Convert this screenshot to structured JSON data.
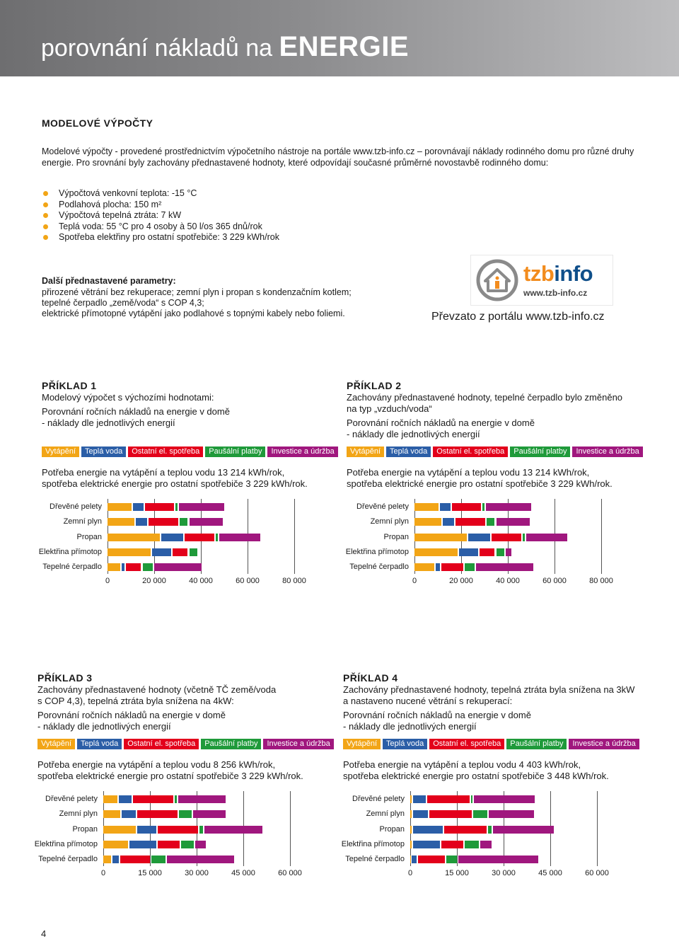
{
  "header": {
    "title_light": "porovnání nákladů na",
    "title_bold": "ENERGIE"
  },
  "section": {
    "title": "MODELOVÉ VÝPOČTY",
    "intro": "Modelové výpočty - provedené prostřednictvím výpočetního nástroje na portále www.tzb-info.cz – porovnávají náklady rodinného domu pro různé druhy energie. Pro srovnání byly zachovány přednastavené hodnoty, které odpovídají současné průměrné novostavbě rodinného domu:",
    "bullets": [
      "Výpočtová venkovní teplota: -15 °C",
      "Podlahová plocha: 150 m²",
      "Výpočtová tepelná ztráta: 7 kW",
      "Teplá voda: 55 °C pro 4 osoby à 50 l/os 365 dnů/rok",
      "Spotřeba elektřiny pro ostatní spotřebiče: 3 229 kWh/rok"
    ],
    "params_title": "Další přednastavené parametry:",
    "params_lines": [
      "přirozené větrání bez rekuperace; zemní plyn i propan s kondenzačním kotlem;",
      "tepelné čerpadlo „země/voda“ s COP 4,3;",
      "elektrické přímotopné vytápění jako podlahové s topnými kabely nebo foliemi."
    ],
    "logo_text_a": "tzb",
    "logo_text_b": "info",
    "logo_url": "www.tzb-info.cz",
    "logo_caption": "Převzato z portálu www.tzb-info.cz"
  },
  "legend": {
    "items": [
      {
        "label": "Vytápění",
        "color": "#f2a516"
      },
      {
        "label": "Teplá voda",
        "color": "#2b5ea7"
      },
      {
        "label": "Ostatní el. spotřeba",
        "color": "#e3001b"
      },
      {
        "label": "Paušální platby",
        "color": "#1f9a3a"
      },
      {
        "label": "Investice a údržba",
        "color": "#a0177e"
      }
    ]
  },
  "examples": [
    {
      "title": "PŘÍKLAD 1",
      "desc": [
        "Modelový výpočet s výchozími hodnotami:"
      ],
      "sub": [
        "Porovnání ročních nákladů na energie v domě",
        "- náklady dle jednotlivých energií"
      ],
      "need": [
        "Potřeba energie na vytápění a teplou vodu 13 214 kWh/rok,",
        "spotřeba elektrické energie pro ostatní spotřebiče 3 229 kWh/rok."
      ]
    },
    {
      "title": "PŘÍKLAD 2",
      "desc": [
        "Zachovány přednastavené hodnoty, tepelné čerpadlo bylo změněno",
        "na typ „vzduch/voda“"
      ],
      "sub": [
        "Porovnání ročních nákladů na energie v domě",
        "- náklady dle jednotlivých energií"
      ],
      "need": [
        "Potřeba energie na vytápění a teplou vodu 13 214 kWh/rok,",
        "spotřeba elektrické energie pro ostatní spotřebiče 3 229 kWh/rok."
      ]
    },
    {
      "title": "PŘÍKLAD 3",
      "desc": [
        "Zachovány přednastavené hodnoty (včetně TČ země/voda",
        "s COP 4,3), tepelná ztráta byla snížena na 4kW:"
      ],
      "sub": [
        "Porovnání ročních nákladů na energie v domě",
        "- náklady dle jednotlivých energií"
      ],
      "need": [
        "Potřeba energie na vytápění a teplou vodu 8 256 kWh/rok,",
        "spotřeba elektrické energie pro ostatní spotřebiče 3 229 kWh/rok."
      ]
    },
    {
      "title": "PŘÍKLAD 4",
      "desc": [
        "Zachovány přednastavené hodnoty, tepelná ztráta byla snížena na 3kW",
        "a nastaveno nucené větrání s rekuperací:"
      ],
      "sub": [
        "Porovnání ročních nákladů na energie v domě",
        "- náklady dle jednotlivých energií"
      ],
      "need": [
        "Potřeba energie na vytápění a teplou vodu 4 403 kWh/rok,",
        "spotřeba elektrické energie pro ostatní spotřebiče 3 448 kWh/rok."
      ]
    }
  ],
  "chart_data": [
    {
      "type": "bar",
      "orientation": "horizontal",
      "stacked": true,
      "categories": [
        "Dřevěné pelety",
        "Zemní plyn",
        "Propan",
        "Elektřina přímotop",
        "Tepelné čerpadlo"
      ],
      "xlim": [
        0,
        80000
      ],
      "ticks": [
        0,
        20000,
        40000,
        60000,
        80000
      ],
      "tick_labels": [
        "0",
        "20 000",
        "40 000",
        "60 000",
        "80 000"
      ],
      "series": [
        {
          "name": "Vytápění",
          "values": [
            11000,
            12000,
            23000,
            19000,
            6000
          ]
        },
        {
          "name": "Teplá voda",
          "values": [
            5000,
            5500,
            10000,
            9000,
            2000
          ]
        },
        {
          "name": "Ostatní el. spotřeba",
          "values": [
            13000,
            13500,
            13500,
            7000,
            7000
          ]
        },
        {
          "name": "Paušální platby",
          "values": [
            1500,
            4000,
            1500,
            4000,
            5000
          ]
        },
        {
          "name": "Investice a údržba",
          "values": [
            20000,
            15000,
            18000,
            0,
            21000
          ]
        }
      ]
    },
    {
      "type": "bar",
      "orientation": "horizontal",
      "stacked": true,
      "categories": [
        "Dřevěné pelety",
        "Zemní plyn",
        "Propan",
        "Elektřina přímotop",
        "Tepelné čerpadlo"
      ],
      "xlim": [
        0,
        80000
      ],
      "ticks": [
        0,
        20000,
        40000,
        60000,
        80000
      ],
      "tick_labels": [
        "0",
        "20 000",
        "40 000",
        "60 000",
        "80 000"
      ],
      "series": [
        {
          "name": "Vytápění",
          "values": [
            11000,
            12000,
            23000,
            19000,
            9000
          ]
        },
        {
          "name": "Teplá voda",
          "values": [
            5000,
            5500,
            10000,
            9000,
            2500
          ]
        },
        {
          "name": "Ostatní el. spotřeba",
          "values": [
            13000,
            13500,
            13500,
            7000,
            10000
          ]
        },
        {
          "name": "Paušální platby",
          "values": [
            1500,
            4000,
            1500,
            4000,
            5000
          ]
        },
        {
          "name": "Investice a údržba",
          "values": [
            20000,
            15000,
            18000,
            3000,
            25000
          ]
        }
      ]
    },
    {
      "type": "bar",
      "orientation": "horizontal",
      "stacked": true,
      "categories": [
        "Dřevěné pelety",
        "Zemní plyn",
        "Propan",
        "Elektřina přímotop",
        "Tepelné čerpadlo"
      ],
      "xlim": [
        0,
        60000
      ],
      "ticks": [
        0,
        15000,
        30000,
        45000,
        60000
      ],
      "tick_labels": [
        "0",
        "15 000",
        "30 000",
        "45 000",
        "60 000"
      ],
      "series": [
        {
          "name": "Vytápění",
          "values": [
            5000,
            5800,
            11000,
            8500,
            3000
          ]
        },
        {
          "name": "Teplá voda",
          "values": [
            4500,
            5000,
            6500,
            9000,
            2500
          ]
        },
        {
          "name": "Ostatní el. spotřeba",
          "values": [
            13500,
            13500,
            13500,
            7500,
            10000
          ]
        },
        {
          "name": "Paušální platby",
          "values": [
            1200,
            4500,
            1500,
            4500,
            5000
          ]
        },
        {
          "name": "Investice a údržba",
          "values": [
            15500,
            11000,
            19000,
            4000,
            22000
          ]
        }
      ]
    },
    {
      "type": "bar",
      "orientation": "horizontal",
      "stacked": true,
      "categories": [
        "Dřevěné pelety",
        "Zemní plyn",
        "Propan",
        "Elektřina přímotop",
        "Tepelné čerpadlo"
      ],
      "xlim": [
        0,
        60000
      ],
      "ticks": [
        0,
        15000,
        30000,
        45000,
        60000
      ],
      "tick_labels": [
        "0",
        "15 000",
        "30 000",
        "45 000",
        "60 000"
      ],
      "series": [
        {
          "name": "Vytápění",
          "values": [
            1000,
            1000,
            1000,
            1000,
            500
          ]
        },
        {
          "name": "Teplá voda",
          "values": [
            4500,
            5200,
            10000,
            9000,
            2000
          ]
        },
        {
          "name": "Ostatní el. spotřeba",
          "values": [
            14000,
            14000,
            14000,
            7500,
            9000
          ]
        },
        {
          "name": "Paušální platby",
          "values": [
            1000,
            5000,
            1500,
            5000,
            4000
          ]
        },
        {
          "name": "Investice a údržba",
          "values": [
            20000,
            15000,
            20000,
            4000,
            26000
          ]
        }
      ]
    }
  ]
}
